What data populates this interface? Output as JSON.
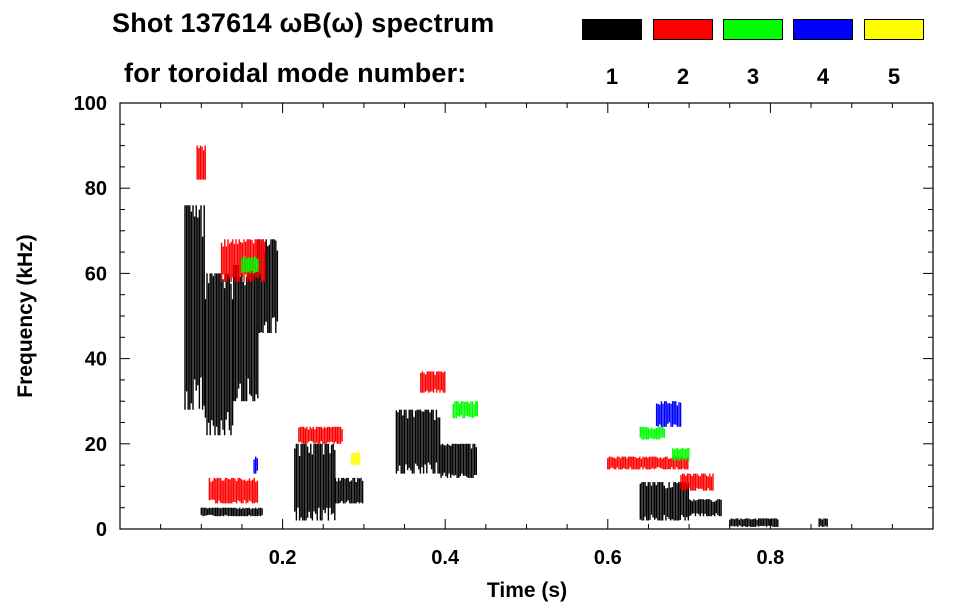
{
  "header": {
    "title_line1": "Shot 137614 ωB(ω) spectrum",
    "title_line2": "for toroidal mode number:"
  },
  "legend": [
    {
      "label": "1",
      "color": "#000000"
    },
    {
      "label": "2",
      "color": "#ff0000"
    },
    {
      "label": "3",
      "color": "#00ff00"
    },
    {
      "label": "4",
      "color": "#0000ff"
    },
    {
      "label": "5",
      "color": "#ffff00"
    }
  ],
  "chart_data": {
    "type": "heatmap",
    "title": "Shot 137614 ωB(ω) spectrum for toroidal mode number",
    "xlabel": "Time (s)",
    "ylabel": "Frequency (kHz)",
    "xlim": [
      0.0,
      1.0
    ],
    "ylim": [
      0,
      100
    ],
    "xticks": [
      {
        "value": 0.2,
        "label": "0.2"
      },
      {
        "value": 0.4,
        "label": "0.4"
      },
      {
        "value": 0.6,
        "label": "0.6"
      },
      {
        "value": 0.8,
        "label": "0.8"
      }
    ],
    "yticks": [
      {
        "value": 0,
        "label": "0"
      },
      {
        "value": 20,
        "label": "20"
      },
      {
        "value": 40,
        "label": "40"
      },
      {
        "value": 60,
        "label": "60"
      },
      {
        "value": 80,
        "label": "80"
      },
      {
        "value": 100,
        "label": "100"
      }
    ],
    "regions": [
      {
        "n": 1,
        "t0": 0.08,
        "t1": 0.105,
        "f0": 28,
        "f1": 76
      },
      {
        "n": 1,
        "t0": 0.105,
        "t1": 0.14,
        "f0": 22,
        "f1": 60
      },
      {
        "n": 1,
        "t0": 0.14,
        "t1": 0.17,
        "f0": 30,
        "f1": 62
      },
      {
        "n": 1,
        "t0": 0.17,
        "t1": 0.195,
        "f0": 46,
        "f1": 68
      },
      {
        "n": 1,
        "t0": 0.1,
        "t1": 0.175,
        "f0": 3,
        "f1": 5
      },
      {
        "n": 1,
        "t0": 0.215,
        "t1": 0.265,
        "f0": 2,
        "f1": 20
      },
      {
        "n": 1,
        "t0": 0.265,
        "t1": 0.3,
        "f0": 6,
        "f1": 12
      },
      {
        "n": 1,
        "t0": 0.34,
        "t1": 0.395,
        "f0": 13,
        "f1": 28
      },
      {
        "n": 1,
        "t0": 0.395,
        "t1": 0.44,
        "f0": 12,
        "f1": 20
      },
      {
        "n": 1,
        "t0": 0.64,
        "t1": 0.7,
        "f0": 2,
        "f1": 11
      },
      {
        "n": 1,
        "t0": 0.7,
        "t1": 0.74,
        "f0": 3,
        "f1": 7
      },
      {
        "n": 1,
        "t0": 0.75,
        "t1": 0.81,
        "f0": 0.5,
        "f1": 2.5
      },
      {
        "n": 1,
        "t0": 0.86,
        "t1": 0.87,
        "f0": 0.5,
        "f1": 2.5
      },
      {
        "n": 2,
        "t0": 0.095,
        "t1": 0.105,
        "f0": 82,
        "f1": 90
      },
      {
        "n": 2,
        "t0": 0.125,
        "t1": 0.18,
        "f0": 58,
        "f1": 68
      },
      {
        "n": 2,
        "t0": 0.11,
        "t1": 0.17,
        "f0": 6,
        "f1": 12
      },
      {
        "n": 2,
        "t0": 0.22,
        "t1": 0.275,
        "f0": 20,
        "f1": 24
      },
      {
        "n": 2,
        "t0": 0.37,
        "t1": 0.4,
        "f0": 32,
        "f1": 37
      },
      {
        "n": 2,
        "t0": 0.6,
        "t1": 0.7,
        "f0": 14,
        "f1": 17
      },
      {
        "n": 2,
        "t0": 0.69,
        "t1": 0.73,
        "f0": 9,
        "f1": 13
      },
      {
        "n": 3,
        "t0": 0.15,
        "t1": 0.17,
        "f0": 60,
        "f1": 64
      },
      {
        "n": 3,
        "t0": 0.41,
        "t1": 0.44,
        "f0": 26,
        "f1": 30
      },
      {
        "n": 3,
        "t0": 0.64,
        "t1": 0.67,
        "f0": 21,
        "f1": 24
      },
      {
        "n": 3,
        "t0": 0.68,
        "t1": 0.7,
        "f0": 16,
        "f1": 19
      },
      {
        "n": 4,
        "t0": 0.165,
        "t1": 0.17,
        "f0": 13,
        "f1": 17
      },
      {
        "n": 4,
        "t0": 0.66,
        "t1": 0.69,
        "f0": 24,
        "f1": 30
      },
      {
        "n": 5,
        "t0": 0.285,
        "t1": 0.295,
        "f0": 15,
        "f1": 18
      }
    ]
  }
}
